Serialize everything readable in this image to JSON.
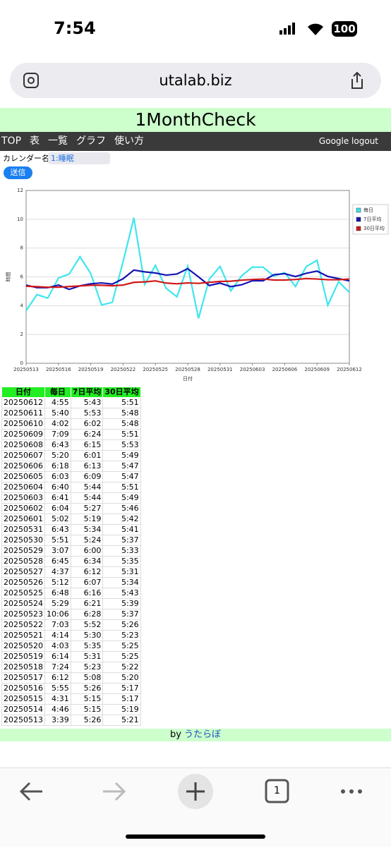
{
  "status_bar": {
    "time": "7:54",
    "battery": "100"
  },
  "browser": {
    "url": "utalab.biz",
    "tab_count": "1"
  },
  "header": {
    "title": "1MonthCheck"
  },
  "nav": {
    "items": [
      "TOP",
      "表",
      "一覧",
      "グラフ",
      "使い方"
    ],
    "logout": "Google logout"
  },
  "form": {
    "label": "カレンダー名",
    "select": "1:睡眠",
    "button": "送信"
  },
  "chart_data": {
    "type": "line",
    "x_label": "日付",
    "y_label": "時間",
    "categories": [
      "20250513",
      null,
      null,
      "20250516",
      null,
      null,
      "20250519",
      null,
      null,
      "20250522",
      null,
      null,
      "20250525",
      null,
      null,
      "20250528",
      null,
      null,
      "20250531",
      null,
      null,
      "20250603",
      null,
      null,
      "20250606",
      null,
      null,
      "20250609",
      null,
      null,
      "20250612"
    ],
    "ylim": [
      0,
      12
    ],
    "yticks": [
      0,
      2,
      4,
      6,
      8,
      10,
      12
    ],
    "grid": true,
    "legend": "right",
    "series": [
      {
        "name": "毎日",
        "color": "#3ee6ee",
        "values": [
          3.65,
          4.77,
          4.52,
          5.92,
          6.2,
          7.4,
          6.23,
          4.05,
          4.23,
          7.05,
          10.1,
          5.48,
          6.8,
          5.2,
          4.62,
          6.75,
          3.12,
          5.85,
          6.72,
          5.03,
          6.07,
          6.68,
          6.67,
          6.05,
          6.3,
          5.33,
          6.72,
          7.15,
          4.03,
          5.67,
          4.92
        ]
      },
      {
        "name": "7日平均",
        "color": "#1414b4",
        "values": [
          5.43,
          5.25,
          5.25,
          5.43,
          5.13,
          5.38,
          5.52,
          5.58,
          5.5,
          5.87,
          6.47,
          6.35,
          6.27,
          6.12,
          6.2,
          6.57,
          6.0,
          5.4,
          5.57,
          5.32,
          5.45,
          5.73,
          5.73,
          6.15,
          6.22,
          6.02,
          6.25,
          6.4,
          6.03,
          5.88,
          5.72
        ]
      },
      {
        "name": "30日平均",
        "color": "#d01818",
        "values": [
          5.35,
          5.32,
          5.28,
          5.28,
          5.33,
          5.37,
          5.42,
          5.42,
          5.38,
          5.43,
          5.62,
          5.65,
          5.72,
          5.57,
          5.52,
          5.58,
          5.55,
          5.62,
          5.68,
          5.7,
          5.77,
          5.82,
          5.85,
          5.78,
          5.78,
          5.82,
          5.88,
          5.85,
          5.8,
          5.8,
          5.85
        ]
      }
    ]
  },
  "table": {
    "columns": [
      "日付",
      "毎日",
      "7日平均",
      "30日平均"
    ],
    "rows": [
      [
        "20250612",
        "4:55",
        "5:43",
        "5:51"
      ],
      [
        "20250611",
        "5:40",
        "5:53",
        "5:48"
      ],
      [
        "20250610",
        "4:02",
        "6:02",
        "5:48"
      ],
      [
        "20250609",
        "7:09",
        "6:24",
        "5:51"
      ],
      [
        "20250608",
        "6:43",
        "6:15",
        "5:53"
      ],
      [
        "20250607",
        "5:20",
        "6:01",
        "5:49"
      ],
      [
        "20250606",
        "6:18",
        "6:13",
        "5:47"
      ],
      [
        "20250605",
        "6:03",
        "6:09",
        "5:47"
      ],
      [
        "20250604",
        "6:40",
        "5:44",
        "5:51"
      ],
      [
        "20250603",
        "6:41",
        "5:44",
        "5:49"
      ],
      [
        "20250602",
        "6:04",
        "5:27",
        "5:46"
      ],
      [
        "20250601",
        "5:02",
        "5:19",
        "5:42"
      ],
      [
        "20250531",
        "6:43",
        "5:34",
        "5:41"
      ],
      [
        "20250530",
        "5:51",
        "5:24",
        "5:37"
      ],
      [
        "20250529",
        "3:07",
        "6:00",
        "5:33"
      ],
      [
        "20250528",
        "6:45",
        "6:34",
        "5:35"
      ],
      [
        "20250527",
        "4:37",
        "6:12",
        "5:31"
      ],
      [
        "20250526",
        "5:12",
        "6:07",
        "5:34"
      ],
      [
        "20250525",
        "6:48",
        "6:16",
        "5:43"
      ],
      [
        "20250524",
        "5:29",
        "6:21",
        "5:39"
      ],
      [
        "20250523",
        "10:06",
        "6:28",
        "5:37"
      ],
      [
        "20250522",
        "7:03",
        "5:52",
        "5:26"
      ],
      [
        "20250521",
        "4:14",
        "5:30",
        "5:23"
      ],
      [
        "20250520",
        "4:03",
        "5:35",
        "5:25"
      ],
      [
        "20250519",
        "6:14",
        "5:31",
        "5:25"
      ],
      [
        "20250518",
        "7:24",
        "5:23",
        "5:22"
      ],
      [
        "20250517",
        "6:12",
        "5:08",
        "5:20"
      ],
      [
        "20250516",
        "5:55",
        "5:26",
        "5:17"
      ],
      [
        "20250515",
        "4:31",
        "5:15",
        "5:17"
      ],
      [
        "20250514",
        "4:46",
        "5:15",
        "5:19"
      ],
      [
        "20250513",
        "3:39",
        "5:26",
        "5:21"
      ]
    ]
  },
  "footer": {
    "by": "by",
    "link": "うたらぼ"
  }
}
